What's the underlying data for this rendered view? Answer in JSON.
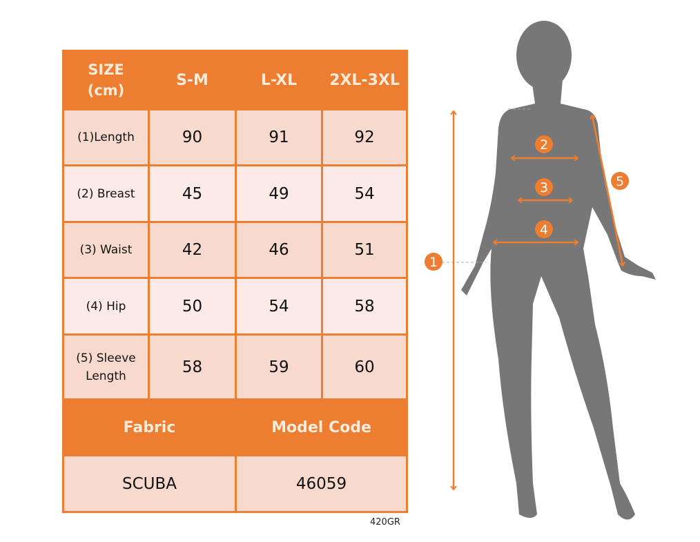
{
  "table": {
    "header": [
      "SIZE\n(cm)",
      "S-M",
      "L-XL",
      "2XL-3XL"
    ],
    "header_size_line1": "SIZE",
    "header_size_line2": "(cm)",
    "rows": [
      {
        "label": "(1)Length",
        "values": [
          "90",
          "91",
          "92"
        ]
      },
      {
        "label": "(2) Breast",
        "values": [
          "45",
          "49",
          "54"
        ]
      },
      {
        "label": "(3) Waist",
        "values": [
          "42",
          "46",
          "51"
        ]
      },
      {
        "label": "(4) Hip",
        "values": [
          "50",
          "54",
          "58"
        ]
      },
      {
        "label_line1": "(5) Sleeve",
        "label_line2": "Length",
        "values": [
          "58",
          "59",
          "60"
        ]
      }
    ],
    "fabric_label": "Fabric",
    "model_code_label": "Model Code",
    "fabric_value": "SCUBA",
    "model_code_value": "46059"
  },
  "weight_note": "420GR",
  "figure": {
    "markers": [
      "1",
      "2",
      "3",
      "4",
      "5"
    ],
    "accent_color": "#ED7D31",
    "silhouette_color": "#777777"
  },
  "colors": {
    "header": "#ED7D31",
    "row_dark": "#F8D9CD",
    "row_light": "#FBEAE5"
  }
}
